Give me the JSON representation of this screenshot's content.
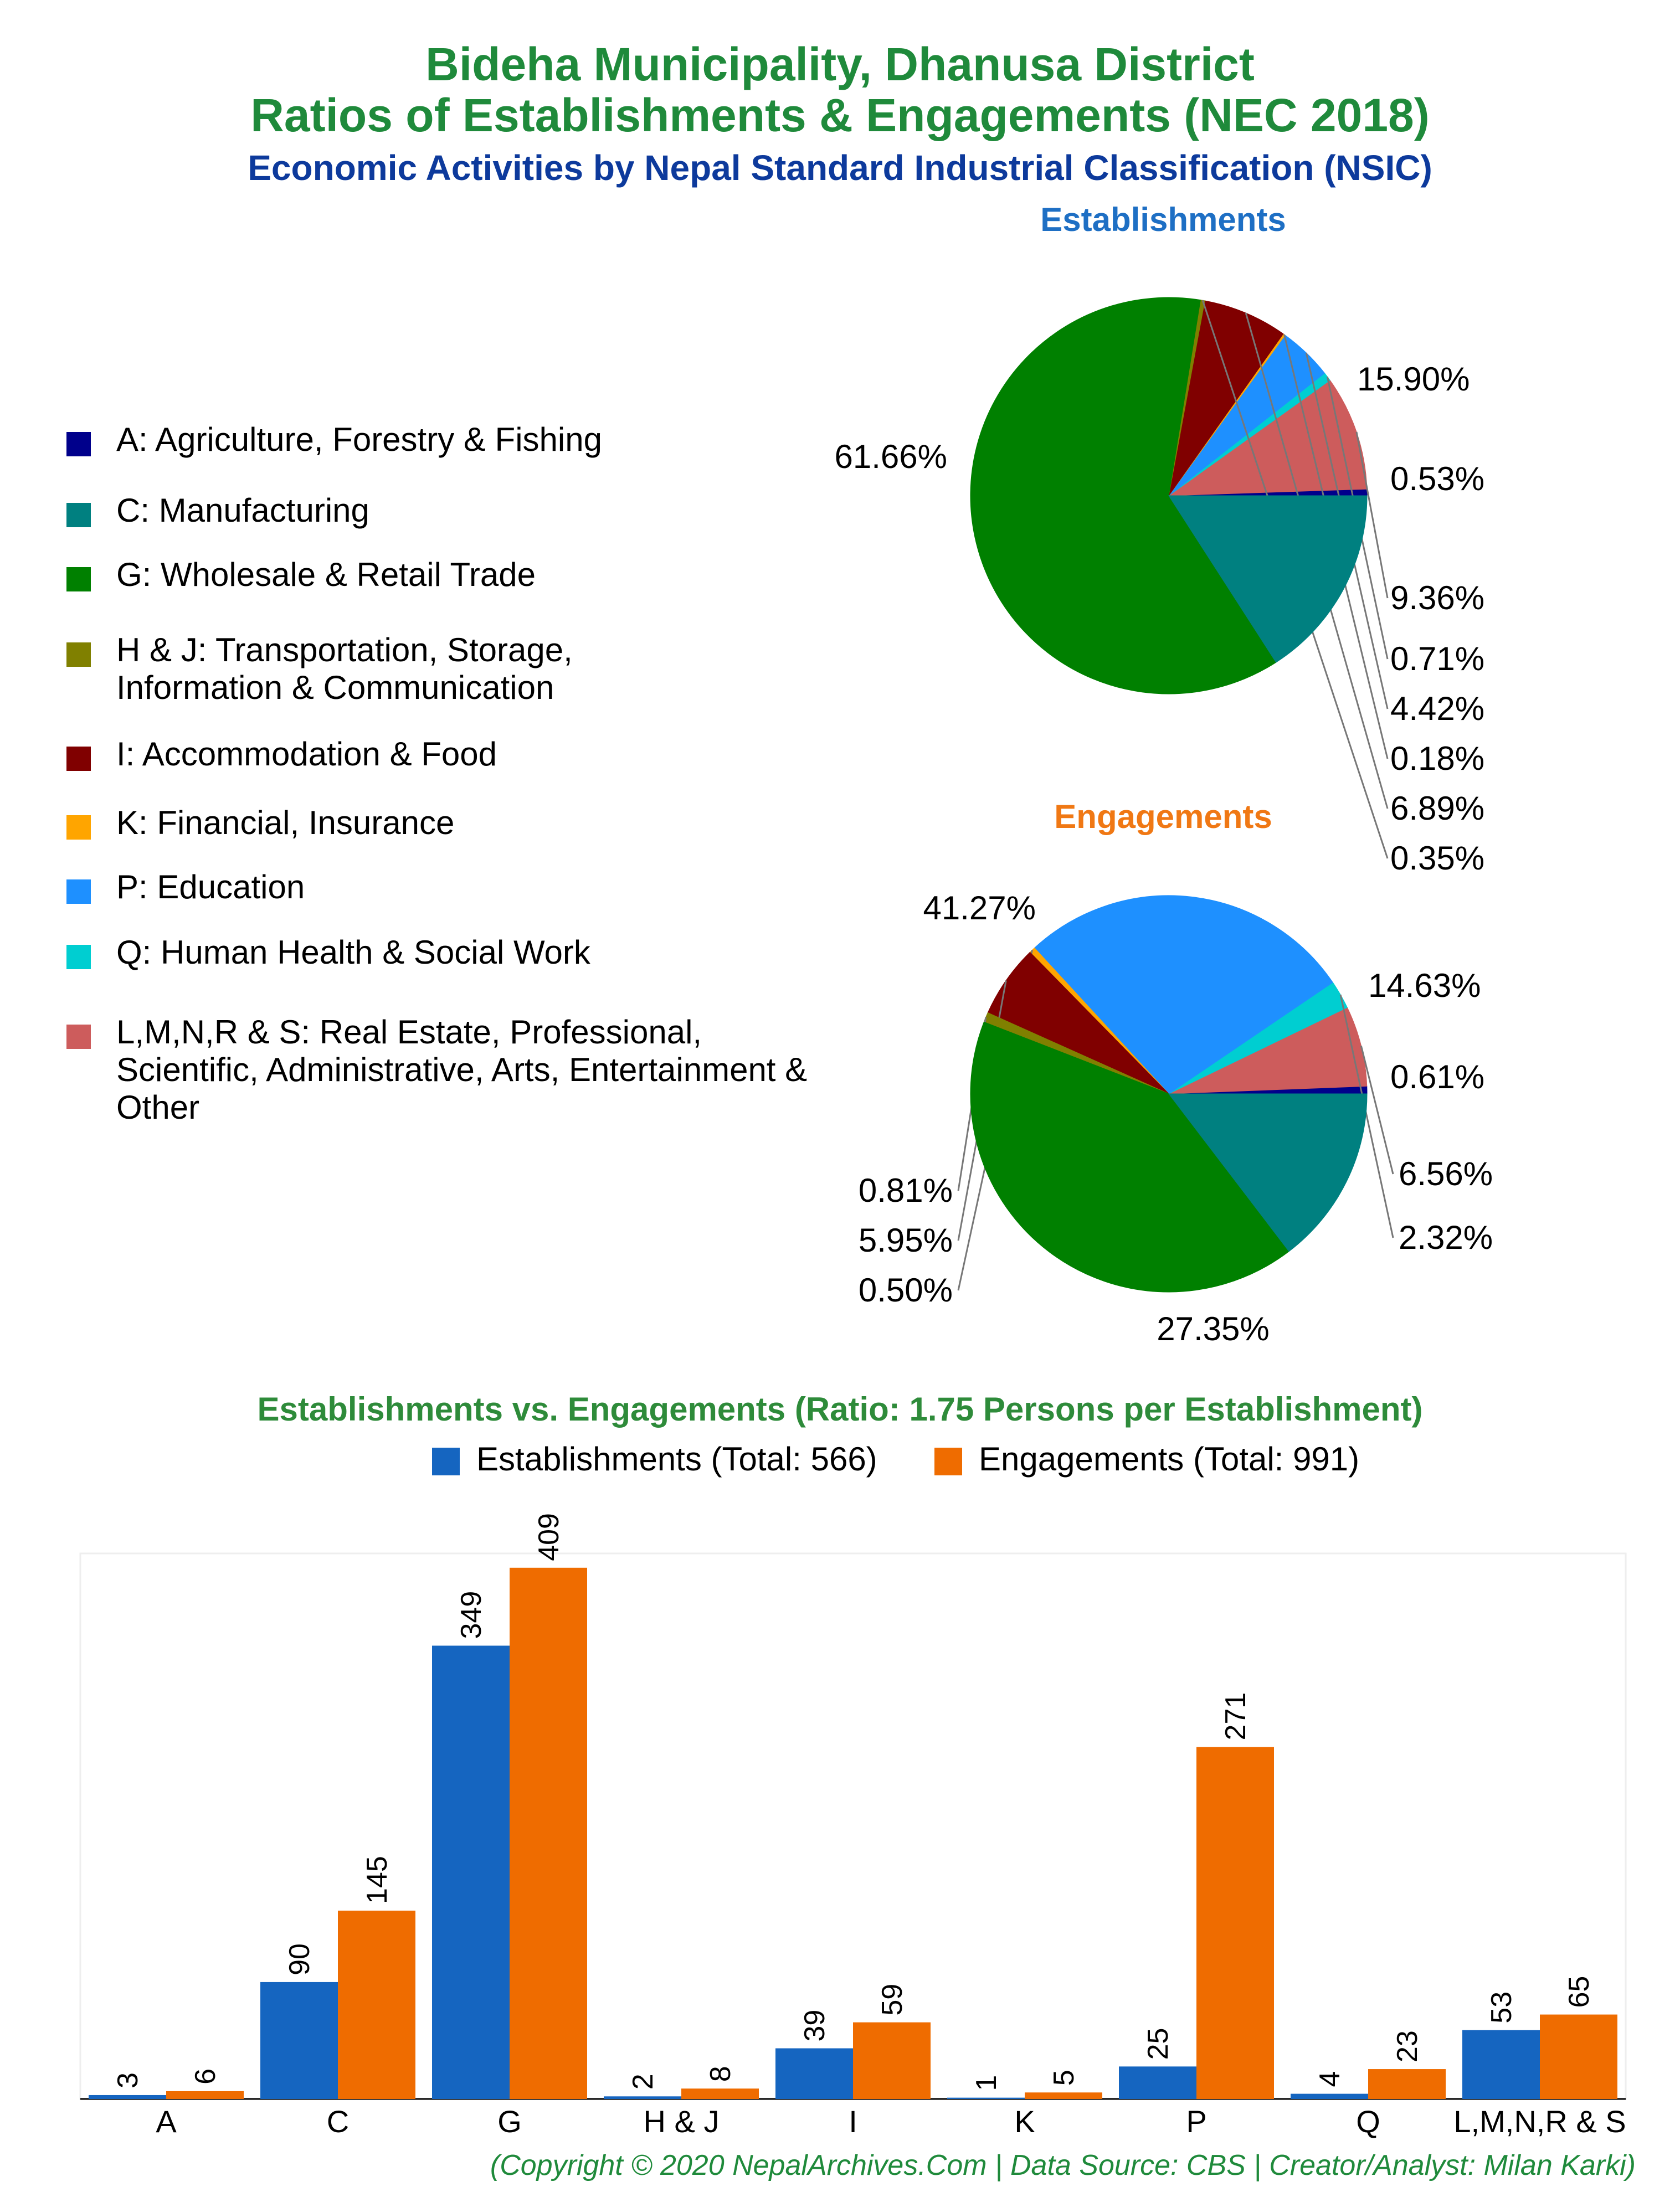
{
  "header": {
    "title_line1": "Bideha Municipality, Dhanusa District",
    "title_line2": "Ratios of Establishments & Engagements (NEC 2018)",
    "subtitle": "Economic Activities by Nepal Standard Industrial Classification (NSIC)"
  },
  "legend": [
    {
      "label": "A: Agriculture, Forestry & Fishing",
      "color": "#00008b"
    },
    {
      "label": "C: Manufacturing",
      "color": "#008080"
    },
    {
      "label": "G: Wholesale & Retail Trade",
      "color": "#008000"
    },
    {
      "label": "H & J: Transportation, Storage, Information & Communication",
      "color": "#808000"
    },
    {
      "label": "I: Accommodation & Food",
      "color": "#800000"
    },
    {
      "label": "K: Financial, Insurance",
      "color": "#ffa500"
    },
    {
      "label": "P: Education",
      "color": "#1e90ff"
    },
    {
      "label": "Q: Human Health & Social Work",
      "color": "#00ced1"
    },
    {
      "label": "L,M,N,R & S: Real Estate, Professional, Scientific, Administrative, Arts, Entertainment & Other",
      "color": "#cd5c5c"
    }
  ],
  "chart_data": [
    {
      "type": "pie",
      "title": "Establishments",
      "title_color": "#1e6fc4",
      "slices": [
        {
          "code": "A",
          "value": 0.53,
          "label": "0.53%",
          "color": "#00008b"
        },
        {
          "code": "L,M,N,R & S",
          "value": 9.36,
          "label": "9.36%",
          "color": "#cd5c5c"
        },
        {
          "code": "Q",
          "value": 0.71,
          "label": "0.71%",
          "color": "#00ced1"
        },
        {
          "code": "P",
          "value": 4.42,
          "label": "4.42%",
          "color": "#1e90ff"
        },
        {
          "code": "K",
          "value": 0.18,
          "label": "0.18%",
          "color": "#ffa500"
        },
        {
          "code": "I",
          "value": 6.89,
          "label": "6.89%",
          "color": "#800000"
        },
        {
          "code": "H & J",
          "value": 0.35,
          "label": "0.35%",
          "color": "#808000"
        },
        {
          "code": "G",
          "value": 61.66,
          "label": "61.66%",
          "color": "#008000"
        },
        {
          "code": "C",
          "value": 15.9,
          "label": "15.90%",
          "color": "#008080"
        }
      ]
    },
    {
      "type": "pie",
      "title": "Engagements",
      "title_color": "#f07814",
      "slices": [
        {
          "code": "A",
          "value": 0.61,
          "label": "0.61%",
          "color": "#00008b"
        },
        {
          "code": "L,M,N,R & S",
          "value": 6.56,
          "label": "6.56%",
          "color": "#cd5c5c"
        },
        {
          "code": "Q",
          "value": 2.32,
          "label": "2.32%",
          "color": "#00ced1"
        },
        {
          "code": "P",
          "value": 27.35,
          "label": "27.35%",
          "color": "#1e90ff"
        },
        {
          "code": "K",
          "value": 0.5,
          "label": "0.50%",
          "color": "#ffa500"
        },
        {
          "code": "I",
          "value": 5.95,
          "label": "5.95%",
          "color": "#800000"
        },
        {
          "code": "H & J",
          "value": 0.81,
          "label": "0.81%",
          "color": "#808000"
        },
        {
          "code": "G",
          "value": 41.27,
          "label": "41.27%",
          "color": "#008000"
        },
        {
          "code": "C",
          "value": 14.63,
          "label": "14.63%",
          "color": "#008080"
        }
      ]
    },
    {
      "type": "bar",
      "title": "Establishments vs. Engagements (Ratio: 1.75 Persons per Establishment)",
      "categories": [
        "A",
        "C",
        "G",
        "H & J",
        "I",
        "K",
        "P",
        "Q",
        "L,M,N,R & S"
      ],
      "series": [
        {
          "name": "Establishments (Total: 566)",
          "color": "#1565c0",
          "values": [
            3,
            90,
            349,
            2,
            39,
            1,
            25,
            4,
            53
          ]
        },
        {
          "name": "Engagements (Total: 991)",
          "color": "#ef6c00",
          "values": [
            6,
            145,
            409,
            8,
            59,
            5,
            271,
            23,
            65
          ]
        }
      ],
      "ylim": [
        0,
        420
      ]
    }
  ],
  "footer": "(Copyright © 2020 NepalArchives.Com | Data Source: CBS | Creator/Analyst: Milan Karki)"
}
